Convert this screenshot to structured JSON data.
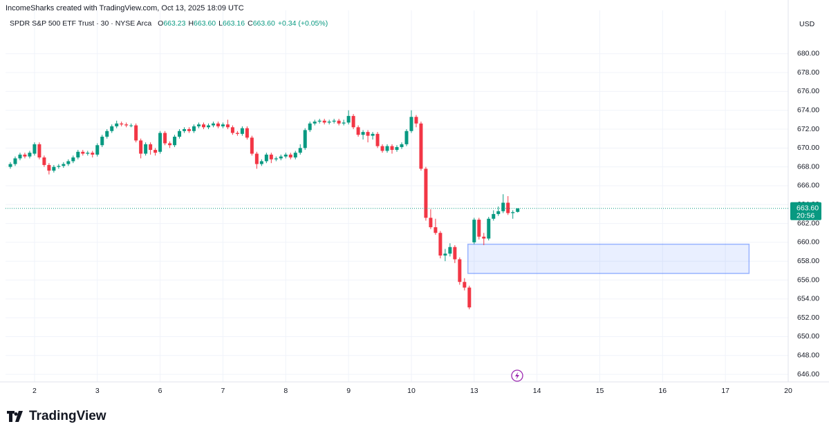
{
  "header": {
    "credit": "IncomeSharks created with TradingView.com, Oct 13, 2025 18:09 UTC",
    "symbol": "SPDR S&P 500 ETF Trust · 30 · NYSE Arca",
    "ohlc": [
      {
        "key": "O",
        "value": "663.23"
      },
      {
        "key": "H",
        "value": "663.60"
      },
      {
        "key": "L",
        "value": "663.16"
      },
      {
        "key": "C",
        "value": "663.60"
      }
    ],
    "change": "+0.34 (+0.05%)",
    "currency": "USD",
    "brand": "TradingView"
  },
  "chart_data": {
    "type": "candlestick",
    "up_color": "#089981",
    "down_color": "#f23645",
    "grid": true,
    "open": [
      668.0,
      668.3,
      668.9,
      669.3,
      669.1,
      669.4,
      670.4,
      669.0,
      668.2,
      667.6,
      668.0,
      668.1,
      668.3,
      668.6,
      669.0,
      669.6,
      669.4,
      669.5,
      669.3,
      670.3,
      671.2,
      671.8,
      672.3,
      672.6,
      672.5,
      672.4,
      672.4,
      670.8,
      669.4,
      670.4,
      669.8,
      669.6,
      671.6,
      670.5,
      670.3,
      671.2,
      671.8,
      672.0,
      671.8,
      672.3,
      672.5,
      672.2,
      672.4,
      672.6,
      672.3,
      672.5,
      672.2,
      671.6,
      671.5,
      672.1,
      671.1,
      669.4,
      668.3,
      668.6,
      669.3,
      668.8,
      668.9,
      669.1,
      669.3,
      669.0,
      669.5,
      670.0,
      671.9,
      672.6,
      672.8,
      672.9,
      672.7,
      672.8,
      672.9,
      672.6,
      672.7,
      673.4,
      672.2,
      671.4,
      671.7,
      671.3,
      671.5,
      670.2,
      669.7,
      670.2,
      669.8,
      670.1,
      670.4,
      671.8,
      673.3,
      672.6,
      667.8,
      662.6,
      661.6,
      661.0,
      658.6,
      658.8,
      659.5,
      658.2,
      655.8,
      655.2,
      660.0,
      662.4,
      660.6,
      660.4,
      662.5,
      663.0,
      663.3,
      664.2,
      663.1,
      663.23
    ],
    "high": [
      668.5,
      669.1,
      669.5,
      669.5,
      669.7,
      670.6,
      670.6,
      669.2,
      668.4,
      668.2,
      668.3,
      668.5,
      668.8,
      669.2,
      669.8,
      669.8,
      669.7,
      669.7,
      670.5,
      671.4,
      672.0,
      672.5,
      672.9,
      672.8,
      672.7,
      672.6,
      672.6,
      671.0,
      670.6,
      670.6,
      670.0,
      671.8,
      671.8,
      670.7,
      671.4,
      672.0,
      672.2,
      672.2,
      672.5,
      672.7,
      672.7,
      672.6,
      672.8,
      672.8,
      672.7,
      673.0,
      672.4,
      671.8,
      672.3,
      672.3,
      671.3,
      669.6,
      668.8,
      669.5,
      669.5,
      669.1,
      669.3,
      669.5,
      669.5,
      669.7,
      670.4,
      672.1,
      672.8,
      673.0,
      673.1,
      673.1,
      673.0,
      673.1,
      673.1,
      673.0,
      674.0,
      673.6,
      672.4,
      671.9,
      671.9,
      671.7,
      671.7,
      670.4,
      670.4,
      670.4,
      670.3,
      670.6,
      672.0,
      674.0,
      673.5,
      672.8,
      668.0,
      663.5,
      662.5,
      661.2,
      659.3,
      659.9,
      659.7,
      658.4,
      656.2,
      655.4,
      662.6,
      662.6,
      661.0,
      662.7,
      663.4,
      663.8,
      665.1,
      664.9,
      663.4,
      663.6
    ],
    "low": [
      667.8,
      668.1,
      668.7,
      668.9,
      668.9,
      669.2,
      668.8,
      668.0,
      667.2,
      667.4,
      667.8,
      667.9,
      668.1,
      668.4,
      668.8,
      669.2,
      669.2,
      669.0,
      669.1,
      670.1,
      671.0,
      671.6,
      672.1,
      672.3,
      672.2,
      672.2,
      670.6,
      668.9,
      669.2,
      669.3,
      669.2,
      669.4,
      670.3,
      670.0,
      670.1,
      671.0,
      671.6,
      671.6,
      671.6,
      672.1,
      672.0,
      672.0,
      672.2,
      672.1,
      672.1,
      672.0,
      671.4,
      671.3,
      671.3,
      670.9,
      669.2,
      667.8,
      668.1,
      668.4,
      668.4,
      668.6,
      668.7,
      668.9,
      668.8,
      668.8,
      669.3,
      669.8,
      671.7,
      672.4,
      672.6,
      672.5,
      672.5,
      672.6,
      672.4,
      672.4,
      672.5,
      672.0,
      671.2,
      670.9,
      670.6,
      670.9,
      670.0,
      669.5,
      669.5,
      669.4,
      669.6,
      669.9,
      670.2,
      671.6,
      672.2,
      667.6,
      662.3,
      661.4,
      660.8,
      658.3,
      658.0,
      658.5,
      657.8,
      655.5,
      654.9,
      652.9,
      659.8,
      660.3,
      659.7,
      660.2,
      662.3,
      662.8,
      663.1,
      662.9,
      662.5,
      663.16
    ],
    "close": [
      668.3,
      668.9,
      669.3,
      669.1,
      669.5,
      670.4,
      669.0,
      668.2,
      667.6,
      668.0,
      668.1,
      668.3,
      668.6,
      669.0,
      669.6,
      669.4,
      669.5,
      669.3,
      670.3,
      671.2,
      671.8,
      672.3,
      672.6,
      672.5,
      672.4,
      672.4,
      670.8,
      669.4,
      670.4,
      669.8,
      669.5,
      671.6,
      670.5,
      670.3,
      671.2,
      671.8,
      672.0,
      671.8,
      672.3,
      672.5,
      672.2,
      672.4,
      672.6,
      672.3,
      672.5,
      672.2,
      671.6,
      671.5,
      672.1,
      671.1,
      669.4,
      668.3,
      668.6,
      669.3,
      668.8,
      668.9,
      669.1,
      669.3,
      669.0,
      669.5,
      670.0,
      671.9,
      672.6,
      672.8,
      672.9,
      672.7,
      672.8,
      672.9,
      672.6,
      672.7,
      673.4,
      672.2,
      671.4,
      671.7,
      671.3,
      671.5,
      670.2,
      669.7,
      670.2,
      669.8,
      670.1,
      670.4,
      671.8,
      673.3,
      672.6,
      667.8,
      662.6,
      661.6,
      661.0,
      658.6,
      658.8,
      659.5,
      658.2,
      655.8,
      655.2,
      653.1,
      662.4,
      660.6,
      660.4,
      662.5,
      663.0,
      663.3,
      664.2,
      663.1,
      663.2,
      663.6
    ],
    "xlim": [
      -1,
      161
    ],
    "xticks": [
      {
        "value": 5,
        "label": "2"
      },
      {
        "value": 18,
        "label": "3"
      },
      {
        "value": 31,
        "label": "6"
      },
      {
        "value": 44,
        "label": "7"
      },
      {
        "value": 57,
        "label": "8"
      },
      {
        "value": 70,
        "label": "9"
      },
      {
        "value": 83,
        "label": "10"
      },
      {
        "value": 96,
        "label": "13"
      },
      {
        "value": 109,
        "label": "14"
      },
      {
        "value": 122,
        "label": "15"
      },
      {
        "value": 135,
        "label": "16"
      },
      {
        "value": 148,
        "label": "17"
      },
      {
        "value": 161,
        "label": "20"
      }
    ],
    "ylim": [
      645.2,
      682.4
    ],
    "yticks": [
      {
        "value": 646,
        "label": "646.00"
      },
      {
        "value": 648,
        "label": "648.00"
      },
      {
        "value": 650,
        "label": "650.00"
      },
      {
        "value": 652,
        "label": "652.00"
      },
      {
        "value": 654,
        "label": "654.00"
      },
      {
        "value": 656,
        "label": "656.00"
      },
      {
        "value": 658,
        "label": "658.00"
      },
      {
        "value": 660,
        "label": "660.00"
      },
      {
        "value": 662,
        "label": "662.00"
      },
      {
        "value": 664,
        "label": "664.00"
      },
      {
        "value": 666,
        "label": "666.00"
      },
      {
        "value": 668,
        "label": "668.00"
      },
      {
        "value": 670,
        "label": "670.00"
      },
      {
        "value": 672,
        "label": "672.00"
      },
      {
        "value": 674,
        "label": "674.00"
      },
      {
        "value": 676,
        "label": "676.00"
      },
      {
        "value": 678,
        "label": "678.00"
      },
      {
        "value": 680,
        "label": "680.00"
      }
    ],
    "zone": {
      "x": [
        94.7,
        152.9
      ],
      "y": [
        656.7,
        659.8
      ],
      "color": "#2962ff"
    },
    "last_price": {
      "value": 663.6,
      "label": "663.60"
    },
    "countdown": "20:56"
  }
}
